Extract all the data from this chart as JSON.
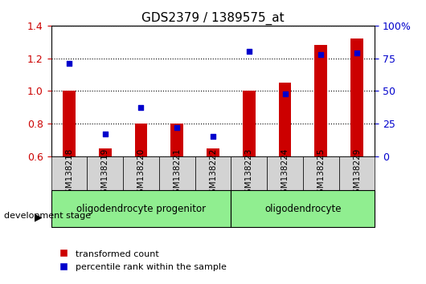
{
  "title": "GDS2379 / 1389575_at",
  "samples": [
    "GSM138218",
    "GSM138219",
    "GSM138220",
    "GSM138221",
    "GSM138222",
    "GSM138223",
    "GSM138224",
    "GSM138225",
    "GSM138229"
  ],
  "red_values": [
    1.0,
    0.65,
    0.8,
    0.8,
    0.65,
    1.0,
    1.05,
    1.28,
    1.32
  ],
  "blue_values": [
    71,
    17,
    37,
    22,
    15,
    80,
    48,
    78,
    79
  ],
  "ylim_left": [
    0.6,
    1.4
  ],
  "ylim_right": [
    0,
    100
  ],
  "yticks_left": [
    0.6,
    0.8,
    1.0,
    1.2,
    1.4
  ],
  "yticks_right": [
    0,
    25,
    50,
    75,
    100
  ],
  "yticklabels_right": [
    "0",
    "25",
    "50",
    "75",
    "100%"
  ],
  "group1_label": "oligodendrocyte progenitor",
  "group1_range": [
    0,
    4
  ],
  "group2_label": "oligodendrocyte",
  "group2_range": [
    5,
    8
  ],
  "dev_stage_label": "development stage",
  "legend_red": "transformed count",
  "legend_blue": "percentile rank within the sample",
  "bar_color": "#cc0000",
  "dot_color": "#0000cc",
  "group1_color": "#90ee90",
  "group2_color": "#90ee90",
  "tick_label_color_left": "#cc0000",
  "tick_label_color_right": "#0000cc",
  "background_plot": "#ffffff",
  "background_tick": "#d3d3d3",
  "grid_color": "#000000"
}
